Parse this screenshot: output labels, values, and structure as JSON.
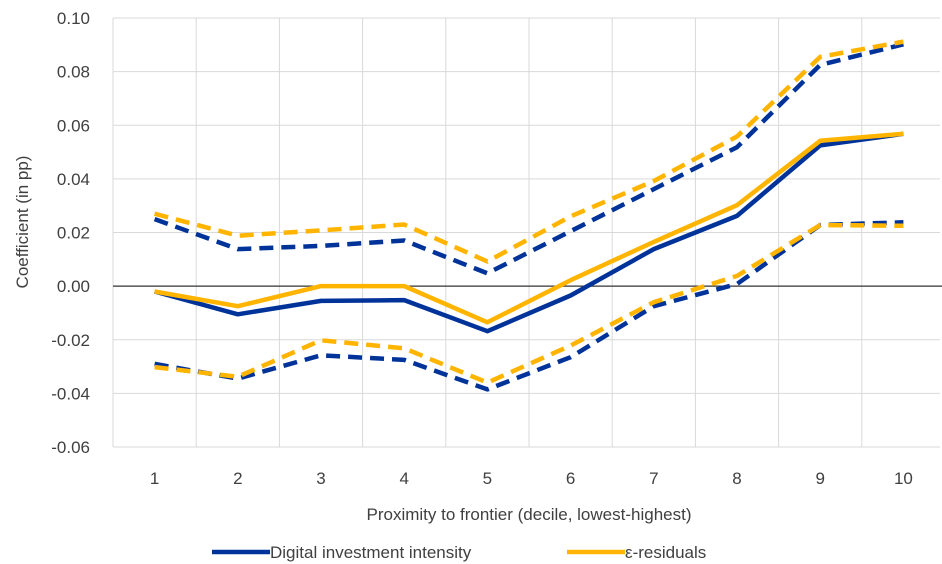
{
  "chart_data": {
    "type": "line",
    "title": "",
    "xlabel": "Proximity to frontier (decile, lowest-highest)",
    "ylabel": "Coefficient (in pp)",
    "categories": [
      "1",
      "2",
      "3",
      "4",
      "5",
      "6",
      "7",
      "8",
      "9",
      "10"
    ],
    "ylim": [
      -0.06,
      0.1
    ],
    "yticks": [
      -0.06,
      -0.04,
      -0.02,
      0.0,
      0.02,
      0.04,
      0.06,
      0.08,
      0.1
    ],
    "ytick_labels": [
      "-0.06",
      "-0.04",
      "-0.02",
      "0.00",
      "0.02",
      "0.04",
      "0.06",
      "0.08",
      "0.10"
    ],
    "grid": true,
    "legend_position": "bottom",
    "legend": [
      {
        "label": "Digital investment intensity",
        "color": "#003399"
      },
      {
        "label": "ε-residuals",
        "color": "#FFB400"
      }
    ],
    "series": [
      {
        "name": "Digital investment intensity",
        "style": "solid",
        "color": "#003399",
        "values": [
          -0.002,
          -0.0105,
          -0.0055,
          -0.0052,
          -0.0168,
          -0.0035,
          0.0138,
          0.0262,
          0.0525,
          0.0568
        ]
      },
      {
        "name": "ε-residuals",
        "style": "solid",
        "color": "#FFB400",
        "values": [
          -0.002,
          -0.0075,
          0.0,
          0.0,
          -0.0135,
          0.0022,
          0.0165,
          0.0302,
          0.0542,
          0.0568
        ]
      },
      {
        "style": "dashed",
        "color": "#003399",
        "values": [
          0.025,
          0.0138,
          0.015,
          0.017,
          0.0048,
          0.0205,
          0.0362,
          0.0518,
          0.0825,
          0.0902
        ]
      },
      {
        "style": "dashed",
        "color": "#003399",
        "values": [
          -0.029,
          -0.0345,
          -0.0258,
          -0.0275,
          -0.0385,
          -0.0265,
          -0.0075,
          0.0008,
          0.0228,
          0.0238
        ]
      },
      {
        "style": "dashed",
        "color": "#FFB400",
        "values": [
          0.027,
          0.0188,
          0.0208,
          0.023,
          0.0092,
          0.026,
          0.0392,
          0.0558,
          0.0855,
          0.0912
        ]
      },
      {
        "style": "dashed",
        "color": "#FFB400",
        "values": [
          -0.0302,
          -0.0338,
          -0.0202,
          -0.0232,
          -0.036,
          -0.0222,
          -0.006,
          0.0038,
          0.0228,
          0.0225
        ]
      }
    ]
  }
}
